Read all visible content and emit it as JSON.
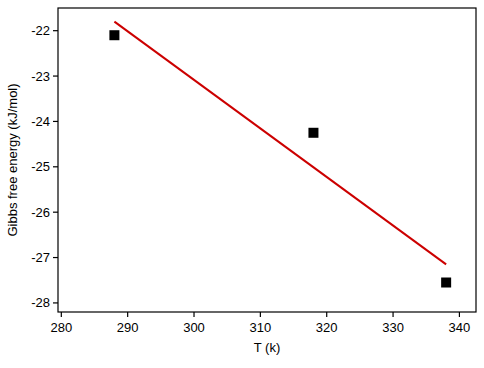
{
  "chart_data": {
    "type": "scatter",
    "x_label": "T (k)",
    "y_label": "Gibbs free energy (kJ/mol)",
    "xlim": [
      279.5,
      342.5
    ],
    "xticks": [
      280,
      290,
      300,
      310,
      320,
      330,
      340
    ],
    "ylim": [
      -28.2,
      -21.5
    ],
    "yticks": [
      -28,
      -27,
      -26,
      -25,
      -24,
      -23,
      -22
    ],
    "grid": false,
    "series": [
      {
        "type": "scatter",
        "color": "#000000",
        "marker": "square",
        "x": [
          288,
          318,
          338
        ],
        "values": [
          -22.1,
          -24.25,
          -27.55
        ]
      },
      {
        "type": "line",
        "color": "#cc0000",
        "line_style": "solid",
        "x": [
          288,
          338
        ],
        "values": [
          -21.8,
          -27.15
        ]
      }
    ]
  }
}
